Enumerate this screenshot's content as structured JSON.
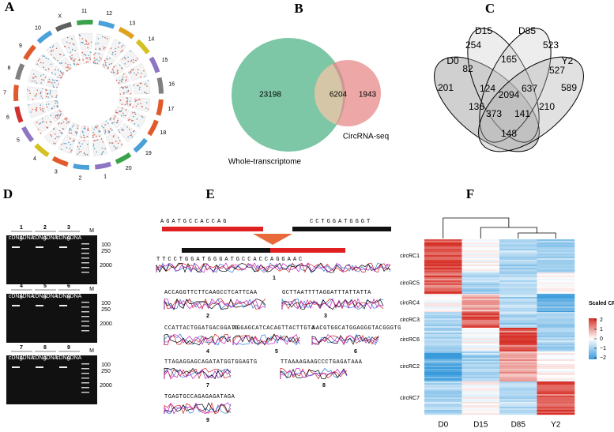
{
  "panels": {
    "A": {
      "letter": "A",
      "chromosomes": [
        "11",
        "12",
        "13",
        "14",
        "15",
        "16",
        "17",
        "18",
        "19",
        "20",
        "1",
        "2",
        "3",
        "4",
        "5",
        "6",
        "7",
        "8",
        "9",
        "10",
        "X"
      ]
    },
    "B": {
      "letter": "B",
      "numbers": [
        "23198",
        "6204",
        "1943"
      ],
      "labels": [
        "Whole-transcriptome",
        "CircRNA-seq"
      ]
    },
    "C": {
      "letter": "C",
      "sets": [
        "D0",
        "D15",
        "D85",
        "Y2"
      ],
      "numbers": [
        "254",
        "523",
        "82",
        "165",
        "527",
        "201",
        "124",
        "637",
        "589",
        "2094",
        "136",
        "373",
        "141",
        "210",
        "148"
      ]
    },
    "D": {
      "letter": "D",
      "lanes": [
        "1",
        "2",
        "3",
        "4",
        "5",
        "6",
        "7",
        "8",
        "9"
      ],
      "lane_types": [
        "cDNA",
        "gDNA"
      ],
      "marker": "M",
      "sizes": [
        "100",
        "250",
        "2000"
      ]
    },
    "E": {
      "letter": "E",
      "left_seq": "AGATGCCACCAG",
      "right_seq": "CCTGGATGGGT",
      "junction_seq": "TTCCTGGATGGGATGCCACCAGGAAC",
      "labels": [
        "1",
        "2",
        "3",
        "4",
        "5",
        "6",
        "7",
        "8",
        "9"
      ],
      "traces": [
        "ACCAGGTTCTTCAAGCCTCATTCAA",
        "GCTTAATTTTAGGATTTATTATTA",
        "CCATTACTGGATGACGGATG",
        "AGGAGCATCACAGTTACTTGTA",
        "AACGTGGCATGGAGGGTACGGGTG",
        "TTAGAGGAGCAGATATGGTGGAGTG",
        "TTAAAAGAAGCCCTGAGATAAA",
        "TGAGTGCCAGAGAGATAGA"
      ]
    },
    "F": {
      "letter": "F",
      "rows": [
        "circRC1",
        "circRC5",
        "circRC4",
        "circRC3",
        "circRC6",
        "circRC2",
        "circRC7"
      ],
      "columns": [
        "D0",
        "D15",
        "D85",
        "Y2"
      ],
      "legend_title": "Scaled CPM",
      "legend_ticks": [
        2,
        1,
        0,
        {
          "value": -1,
          "label": "−1"
        },
        {
          "value": -2,
          "label": "−2"
        }
      ]
    }
  }
}
